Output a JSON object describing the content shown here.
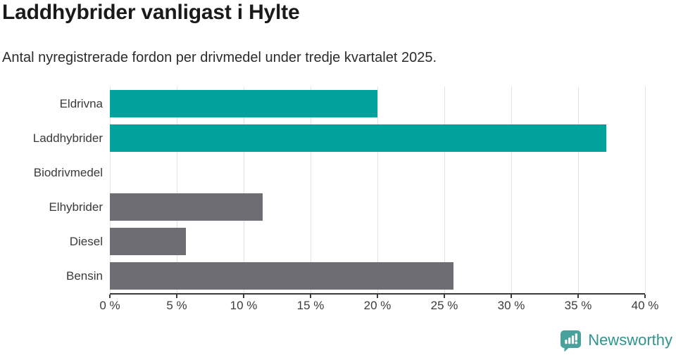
{
  "header": {
    "title": "Laddhybrider vanligast i Hylte",
    "subtitle": "Antal nyregistrerade fordon per drivmedel under tredje kvartalet 2025."
  },
  "chart_data": {
    "type": "bar",
    "orientation": "horizontal",
    "title": "Laddhybrider vanligast i Hylte",
    "subtitle": "Antal nyregistrerade fordon per drivmedel under tredje kvartalet 2025.",
    "categories": [
      "Eldrivna",
      "Laddhybrider",
      "Biodrivmedel",
      "Elhybrider",
      "Diesel",
      "Bensin"
    ],
    "values": [
      20.0,
      37.1,
      0,
      11.4,
      5.7,
      25.7
    ],
    "unit": "%",
    "bar_colors": [
      "#00a29b",
      "#00a29b",
      "#00a29b",
      "#6d6d73",
      "#6d6d73",
      "#6d6d73"
    ],
    "xlim": [
      0,
      40
    ],
    "x_tick_labels": [
      "0 %",
      "5 %",
      "10 %",
      "15 %",
      "20 %",
      "25 %",
      "30 %",
      "35 %",
      "40 %"
    ],
    "grid": true,
    "legend": false
  },
  "footer": {
    "brand": "Newsworthy"
  },
  "colors": {
    "accent_teal": "#00a29b",
    "neutral_gray": "#6d6d73",
    "axis": "#3b3b3b",
    "gridline": "#e2e2e2",
    "logo_bubble_teal": "#48a29b",
    "logo_text_teal": "#2f938e"
  }
}
